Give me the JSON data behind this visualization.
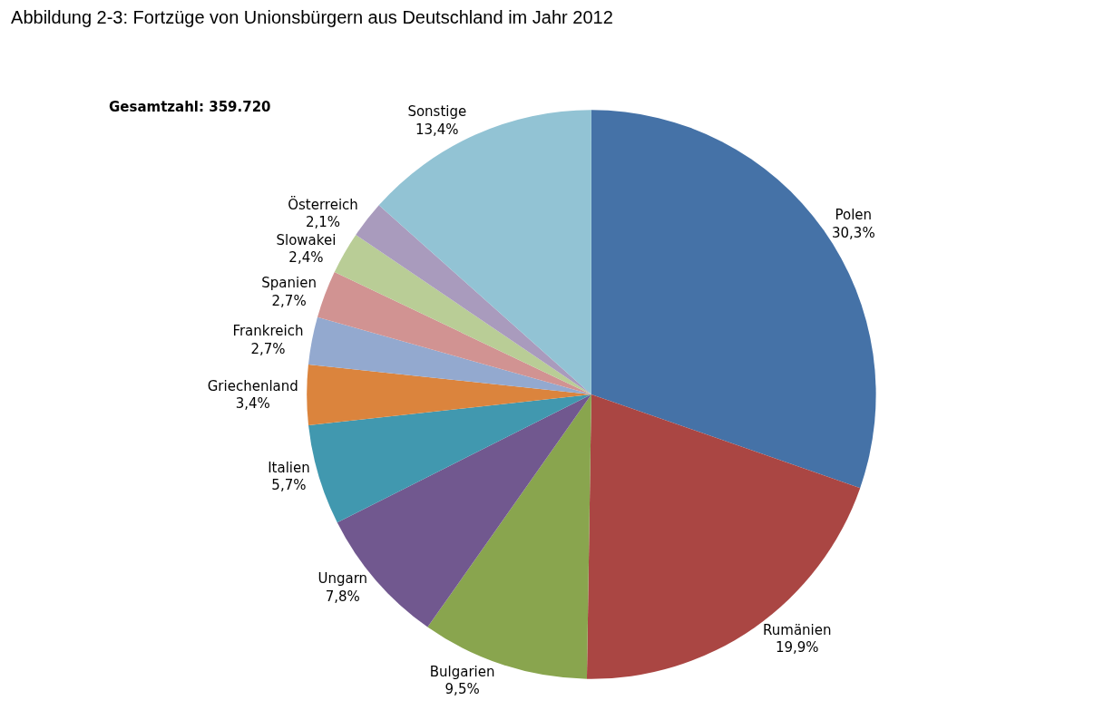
{
  "chart_data": {
    "type": "pie",
    "title": "Abbildung 2-3: Fortzüge von Unionsbürgern aus Deutschland im Jahr 2012",
    "categories": [
      "Polen",
      "Rumänien",
      "Bulgarien",
      "Ungarn",
      "Italien",
      "Griechenland",
      "Frankreich",
      "Spanien",
      "Slowakei",
      "Österreich",
      "Sonstige"
    ],
    "values": [
      30.3,
      19.9,
      9.5,
      7.8,
      5.7,
      3.4,
      2.7,
      2.7,
      2.4,
      2.1,
      13.4
    ],
    "value_labels": [
      "30,3%",
      "19,9%",
      "9,5%",
      "7,8%",
      "5,7%",
      "3,4%",
      "2,7%",
      "2,7%",
      "2,4%",
      "2,1%",
      "13,4%"
    ],
    "colors": [
      "#4572a7",
      "#aa4643",
      "#89a54e",
      "#71588f",
      "#4198af",
      "#db843d",
      "#93a9cf",
      "#d19392",
      "#b9cd96",
      "#a99bbd",
      "#92c3d4"
    ],
    "annotations": [
      "Gesamtzahl: 359.720"
    ],
    "legend": false
  }
}
